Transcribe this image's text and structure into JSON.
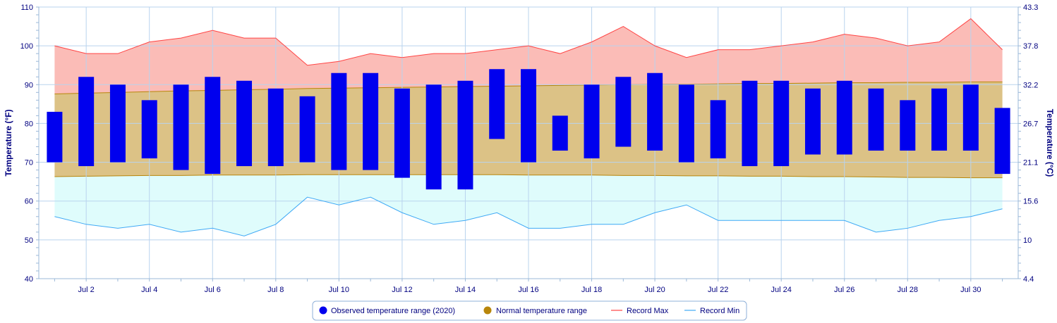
{
  "chart_data": {
    "type": "bar",
    "title": "",
    "ylabel_left": "Temperature (°F)",
    "ylabel_right": "Temperature (°C)",
    "ylim": [
      40,
      110
    ],
    "yticks_left": [
      40,
      50,
      60,
      70,
      80,
      90,
      100,
      110
    ],
    "yticks_right": [
      "4.4",
      "10",
      "15.6",
      "21.1",
      "26.7",
      "32.2",
      "37.8",
      "43.3"
    ],
    "x": [
      1,
      2,
      3,
      4,
      5,
      6,
      7,
      8,
      9,
      10,
      11,
      12,
      13,
      14,
      15,
      16,
      17,
      18,
      19,
      20,
      21,
      22,
      23,
      24,
      25,
      26,
      27,
      28,
      29,
      30,
      31
    ],
    "xtick_labels": [
      "Jul 2",
      "Jul 4",
      "Jul 6",
      "Jul 8",
      "Jul 10",
      "Jul 12",
      "Jul 14",
      "Jul 16",
      "Jul 18",
      "Jul 20",
      "Jul 22",
      "Jul 24",
      "Jul 26",
      "Jul 28",
      "Jul 30"
    ],
    "xtick_days": [
      2,
      4,
      6,
      8,
      10,
      12,
      14,
      16,
      18,
      20,
      22,
      24,
      26,
      28,
      30
    ],
    "grid": true,
    "legend_position": "bottom-center",
    "series": [
      {
        "name": "Observed temperature range (2020)",
        "type": "columnrange",
        "color": "#0000ee",
        "low": [
          70,
          69,
          70,
          71,
          68,
          67,
          69,
          69,
          70,
          68,
          68,
          66,
          63,
          63,
          76,
          70,
          73,
          71,
          74,
          73,
          70,
          71,
          69,
          69,
          72,
          72,
          73,
          73,
          73,
          73,
          67
        ],
        "high": [
          83,
          92,
          90,
          86,
          90,
          92,
          91,
          89,
          87,
          93,
          93,
          89,
          90,
          91,
          94,
          94,
          82,
          90,
          92,
          93,
          90,
          86,
          91,
          91,
          89,
          91,
          89,
          86,
          89,
          90,
          84
        ]
      },
      {
        "name": "Normal temperature range",
        "type": "arearange",
        "color": "#b8860b",
        "fill": "#dcc286",
        "low": [
          66.3,
          66.4,
          66.5,
          66.6,
          66.6,
          66.7,
          66.7,
          66.7,
          66.8,
          66.8,
          66.8,
          66.8,
          66.8,
          66.8,
          66.8,
          66.7,
          66.7,
          66.7,
          66.6,
          66.6,
          66.5,
          66.5,
          66.4,
          66.4,
          66.3,
          66.3,
          66.2,
          66.1,
          66.1,
          66.0,
          66.0
        ],
        "high": [
          87.6,
          87.8,
          88.0,
          88.2,
          88.4,
          88.5,
          88.7,
          88.8,
          89.0,
          89.1,
          89.2,
          89.3,
          89.4,
          89.5,
          89.6,
          89.7,
          89.8,
          89.9,
          90.0,
          90.1,
          90.1,
          90.2,
          90.3,
          90.3,
          90.4,
          90.5,
          90.5,
          90.6,
          90.6,
          90.7,
          90.7
        ]
      },
      {
        "name": "Record Max",
        "type": "line",
        "color": "#ff4444",
        "fill": "#fbbcb7",
        "values": [
          100,
          98,
          98,
          101,
          102,
          104,
          102,
          102,
          95,
          96,
          98,
          97,
          98,
          98,
          99,
          100,
          98,
          101,
          105,
          100,
          97,
          99,
          99,
          100,
          101,
          103,
          102,
          100,
          101,
          107,
          99
        ]
      },
      {
        "name": "Record Min",
        "type": "line",
        "color": "#3fa9f5",
        "fill": "#dffcfc",
        "values": [
          56,
          54,
          53,
          54,
          52,
          53,
          51,
          54,
          61,
          59,
          61,
          57,
          54,
          55,
          57,
          53,
          53,
          54,
          54,
          57,
          59,
          55,
          55,
          55,
          55,
          55,
          52,
          53,
          55,
          56,
          58
        ]
      }
    ]
  }
}
